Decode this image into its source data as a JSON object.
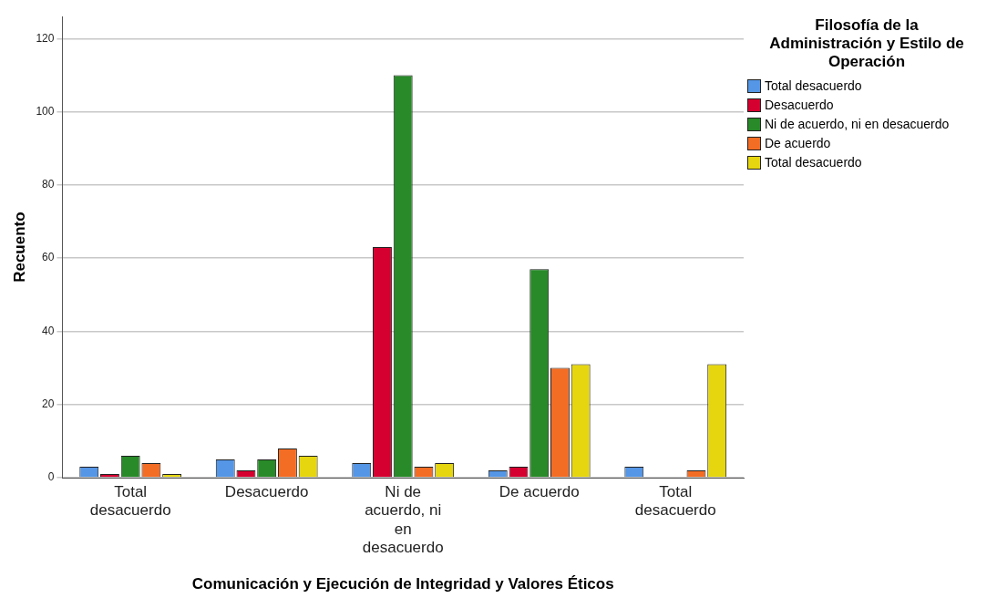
{
  "chart_data": {
    "type": "bar",
    "xlabel": "Comunicación y Ejecución de Integridad y Valores Éticos",
    "ylabel": "Recuento",
    "legend_title": "Filosofía de la Administración y Estilo de Operación",
    "categories": [
      "Total desacuerdo",
      "Desacuerdo",
      "Ni de acuerdo, ni en desacuerdo",
      "De acuerdo",
      "Total desacuerdo"
    ],
    "series": [
      {
        "name": "Total desacuerdo",
        "color": "#5596e6",
        "values": [
          3,
          5,
          4,
          2,
          3
        ]
      },
      {
        "name": "Desacuerdo",
        "color": "#d5002f",
        "values": [
          1,
          2,
          63,
          3,
          null
        ]
      },
      {
        "name": "Ni de acuerdo, ni en desacuerdo",
        "color": "#288a28",
        "values": [
          6,
          5,
          110,
          57,
          null
        ]
      },
      {
        "name": "De acuerdo",
        "color": "#f46d25",
        "values": [
          4,
          8,
          3,
          30,
          2
        ]
      },
      {
        "name": "Total desacuerdo",
        "color": "#e6d610",
        "values": [
          1,
          6,
          4,
          31,
          31
        ]
      }
    ],
    "ylim": [
      0,
      126
    ],
    "yticks": [
      0,
      20,
      40,
      60,
      80,
      100,
      120
    ],
    "grid": "y",
    "legend": "top right"
  }
}
